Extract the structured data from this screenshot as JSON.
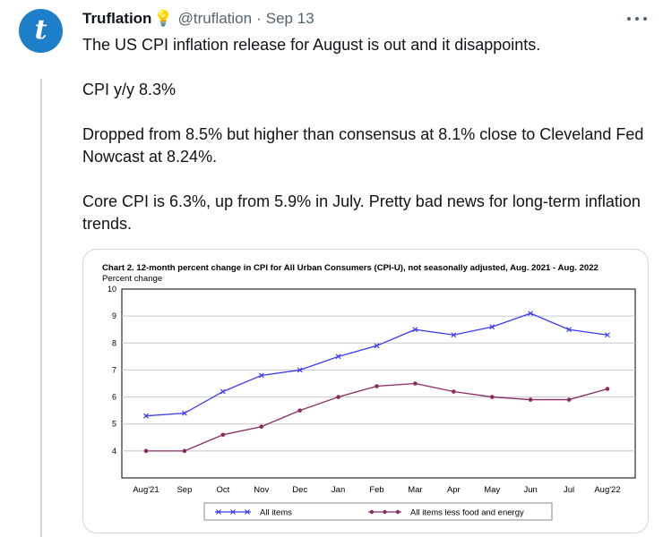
{
  "tweet": {
    "author_name": "Truflation",
    "author_emoji": "💡",
    "handle": "@truflation",
    "separator": "·",
    "date": "Sep 13",
    "avatar_letter": "t",
    "paragraphs": [
      "The US CPI inflation release for August is out and it disappoints.",
      "CPI y/y 8.3%",
      "Dropped from 8.5% but higher than consensus at 8.1% close to Cleveland Fed Nowcast at 8.24%.",
      "Core CPI is 6.3%, up from 5.9% in July. Pretty bad news for long-term inflation trends."
    ],
    "more_icon": "more-horizontal-icon"
  },
  "colors": {
    "accent": "#1d9bf0",
    "avatar": "#1d7fc9",
    "all_items_series": "#3b3bf5",
    "core_series": "#8a2a62"
  },
  "chart_data": {
    "type": "line",
    "title": "Chart 2. 12-month percent change in CPI for All Urban Consumers (CPI-U), not seasonally adjusted, Aug. 2021 - Aug. 2022",
    "ylabel": "Percent change",
    "xlabel": "",
    "categories": [
      "Aug'21",
      "Sep",
      "Oct",
      "Nov",
      "Dec",
      "Jan",
      "Feb",
      "Mar",
      "Apr",
      "May",
      "Jun",
      "Jul",
      "Aug'22"
    ],
    "ylim": [
      3,
      10
    ],
    "yticks": [
      4,
      5,
      6,
      7,
      8,
      9,
      10
    ],
    "grid": true,
    "legend_position": "bottom",
    "series": [
      {
        "name": "All items",
        "marker": "x",
        "values": [
          5.3,
          5.4,
          6.2,
          6.8,
          7.0,
          7.5,
          7.9,
          8.5,
          8.3,
          8.6,
          9.1,
          8.5,
          8.3
        ]
      },
      {
        "name": "All items less food and energy",
        "marker": "dot",
        "values": [
          4.0,
          4.0,
          4.6,
          4.9,
          5.5,
          6.0,
          6.4,
          6.5,
          6.2,
          6.0,
          5.9,
          5.9,
          6.3
        ]
      }
    ]
  }
}
